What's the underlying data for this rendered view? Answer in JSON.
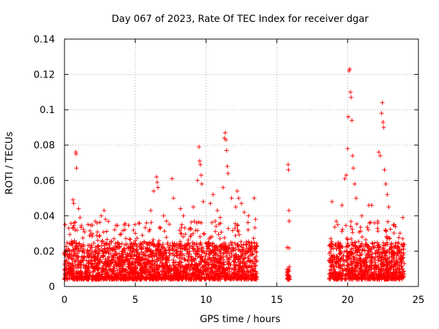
{
  "chart_data": {
    "type": "scatter",
    "title": "Day 067 of 2023, Rate Of TEC Index for receiver dgar",
    "xlabel": "GPS time / hours",
    "ylabel": "ROTI / TECUs",
    "xlim": [
      0,
      25
    ],
    "ylim": [
      0,
      0.14
    ],
    "x_ticks": [
      0,
      5,
      10,
      15,
      20,
      25
    ],
    "x_tick_labels": [
      "0",
      "5",
      "10",
      "15",
      "20",
      "25"
    ],
    "y_ticks": [
      0,
      0.02,
      0.04,
      0.06,
      0.08,
      0.1,
      0.12,
      0.14
    ],
    "y_tick_labels": [
      "0",
      "0.02",
      "0.04",
      "0.06",
      "0.08",
      "0.1",
      "0.12",
      "0.14"
    ],
    "grid": true,
    "marker": "+",
    "color": "#ff0000",
    "series": [
      {
        "name": "ROTI",
        "x_range_clusters": [
          {
            "start": 0,
            "end": 13.6,
            "typical_min": 0.004,
            "typical_max": 0.025
          },
          {
            "start": 15.7,
            "end": 15.9,
            "typical_min": 0.004,
            "typical_max": 0.012
          },
          {
            "start": 18.7,
            "end": 24.0,
            "typical_min": 0.004,
            "typical_max": 0.025
          }
        ],
        "highlight_points": [
          {
            "x": 0.05,
            "y": 0.035
          },
          {
            "x": 0.3,
            "y": 0.033
          },
          {
            "x": 0.6,
            "y": 0.049
          },
          {
            "x": 0.65,
            "y": 0.047
          },
          {
            "x": 0.8,
            "y": 0.076
          },
          {
            "x": 0.82,
            "y": 0.075
          },
          {
            "x": 0.85,
            "y": 0.067
          },
          {
            "x": 1.0,
            "y": 0.044
          },
          {
            "x": 1.1,
            "y": 0.039
          },
          {
            "x": 2.3,
            "y": 0.036
          },
          {
            "x": 2.6,
            "y": 0.04
          },
          {
            "x": 2.8,
            "y": 0.043
          },
          {
            "x": 2.9,
            "y": 0.038
          },
          {
            "x": 3.5,
            "y": 0.027
          },
          {
            "x": 5.0,
            "y": 0.026
          },
          {
            "x": 5.5,
            "y": 0.029
          },
          {
            "x": 5.8,
            "y": 0.036
          },
          {
            "x": 6.1,
            "y": 0.043
          },
          {
            "x": 6.3,
            "y": 0.054
          },
          {
            "x": 6.5,
            "y": 0.062
          },
          {
            "x": 6.55,
            "y": 0.059
          },
          {
            "x": 6.6,
            "y": 0.056
          },
          {
            "x": 7.0,
            "y": 0.04
          },
          {
            "x": 7.2,
            "y": 0.037
          },
          {
            "x": 7.6,
            "y": 0.061
          },
          {
            "x": 7.7,
            "y": 0.05
          },
          {
            "x": 8.2,
            "y": 0.044
          },
          {
            "x": 8.4,
            "y": 0.04
          },
          {
            "x": 8.9,
            "y": 0.033
          },
          {
            "x": 9.1,
            "y": 0.045
          },
          {
            "x": 9.4,
            "y": 0.06
          },
          {
            "x": 9.5,
            "y": 0.079
          },
          {
            "x": 9.55,
            "y": 0.071
          },
          {
            "x": 9.6,
            "y": 0.069
          },
          {
            "x": 9.65,
            "y": 0.063
          },
          {
            "x": 9.7,
            "y": 0.058
          },
          {
            "x": 9.8,
            "y": 0.048
          },
          {
            "x": 10.3,
            "y": 0.047
          },
          {
            "x": 10.5,
            "y": 0.052
          },
          {
            "x": 10.8,
            "y": 0.043
          },
          {
            "x": 11.0,
            "y": 0.039
          },
          {
            "x": 11.2,
            "y": 0.056
          },
          {
            "x": 11.3,
            "y": 0.084
          },
          {
            "x": 11.35,
            "y": 0.087
          },
          {
            "x": 11.4,
            "y": 0.083
          },
          {
            "x": 11.45,
            "y": 0.077
          },
          {
            "x": 11.5,
            "y": 0.068
          },
          {
            "x": 11.55,
            "y": 0.064
          },
          {
            "x": 11.8,
            "y": 0.05
          },
          {
            "x": 12.1,
            "y": 0.045
          },
          {
            "x": 12.2,
            "y": 0.054
          },
          {
            "x": 12.3,
            "y": 0.05
          },
          {
            "x": 12.5,
            "y": 0.047
          },
          {
            "x": 12.7,
            "y": 0.042
          },
          {
            "x": 13.0,
            "y": 0.04
          },
          {
            "x": 13.4,
            "y": 0.05
          },
          {
            "x": 13.5,
            "y": 0.038
          },
          {
            "x": 15.8,
            "y": 0.069
          },
          {
            "x": 15.82,
            "y": 0.066
          },
          {
            "x": 15.85,
            "y": 0.043
          },
          {
            "x": 15.87,
            "y": 0.037
          },
          {
            "x": 18.9,
            "y": 0.048
          },
          {
            "x": 19.3,
            "y": 0.035
          },
          {
            "x": 19.6,
            "y": 0.046
          },
          {
            "x": 19.8,
            "y": 0.061
          },
          {
            "x": 19.9,
            "y": 0.063
          },
          {
            "x": 20.0,
            "y": 0.078
          },
          {
            "x": 20.05,
            "y": 0.096
          },
          {
            "x": 20.1,
            "y": 0.122
          },
          {
            "x": 20.15,
            "y": 0.123
          },
          {
            "x": 20.2,
            "y": 0.11
          },
          {
            "x": 20.25,
            "y": 0.107
          },
          {
            "x": 20.3,
            "y": 0.094
          },
          {
            "x": 20.35,
            "y": 0.074
          },
          {
            "x": 20.4,
            "y": 0.067
          },
          {
            "x": 20.5,
            "y": 0.058
          },
          {
            "x": 20.6,
            "y": 0.05
          },
          {
            "x": 21.0,
            "y": 0.04
          },
          {
            "x": 21.5,
            "y": 0.046
          },
          {
            "x": 21.7,
            "y": 0.046
          },
          {
            "x": 21.9,
            "y": 0.036
          },
          {
            "x": 22.2,
            "y": 0.076
          },
          {
            "x": 22.3,
            "y": 0.074
          },
          {
            "x": 22.4,
            "y": 0.098
          },
          {
            "x": 22.45,
            "y": 0.104
          },
          {
            "x": 22.5,
            "y": 0.093
          },
          {
            "x": 22.55,
            "y": 0.09
          },
          {
            "x": 22.6,
            "y": 0.066
          },
          {
            "x": 22.7,
            "y": 0.058
          },
          {
            "x": 22.8,
            "y": 0.052
          },
          {
            "x": 22.9,
            "y": 0.045
          },
          {
            "x": 23.3,
            "y": 0.035
          },
          {
            "x": 23.9,
            "y": 0.039
          }
        ]
      }
    ]
  }
}
